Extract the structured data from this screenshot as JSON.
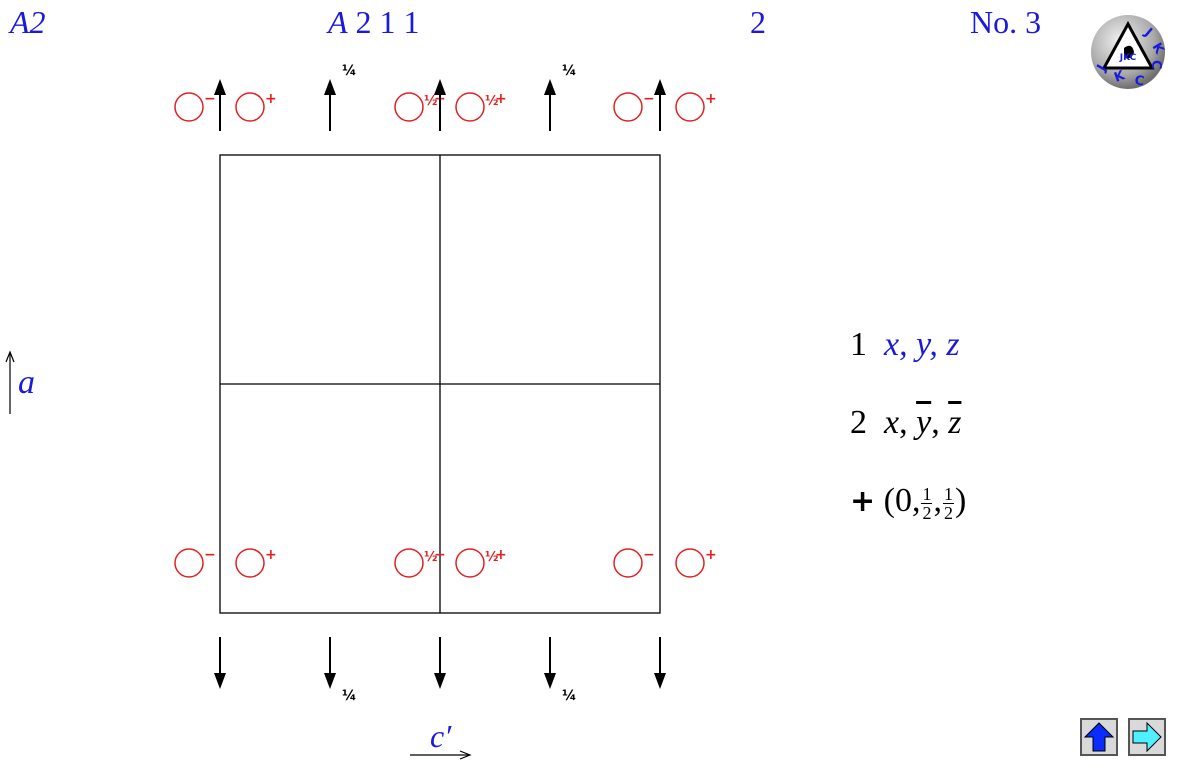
{
  "header": {
    "short_symbol": "A2",
    "full_symbol": [
      "A",
      "2",
      "1",
      "1"
    ],
    "point_group": "2",
    "number_prefix": "No",
    "number_sep": ".",
    "number": "3"
  },
  "logo": {
    "text": "JKC",
    "icon": "jkc-logo"
  },
  "diagram": {
    "plus_sign": "+",
    "minus_sign": "−",
    "half_label": "½",
    "quarter_label": "¼",
    "axis_a": "a",
    "axis_c": "c′",
    "colors": {
      "symbol": "#e32020",
      "frame": "#000000",
      "label": "#1a1adc"
    }
  },
  "operations": [
    {
      "index": "1",
      "coords": [
        "x",
        "y",
        "z"
      ]
    },
    {
      "index": "2",
      "coords": [
        "x",
        "y",
        "z"
      ],
      "bars": [
        false,
        true,
        true
      ]
    }
  ],
  "centering": {
    "plus": "+",
    "open": "(0,",
    "frac_num": "1",
    "frac_den": "2",
    "comma": ",",
    "close": ")"
  },
  "nav": {
    "up_icon": "up-arrow-icon",
    "next_icon": "right-arrow-icon"
  }
}
